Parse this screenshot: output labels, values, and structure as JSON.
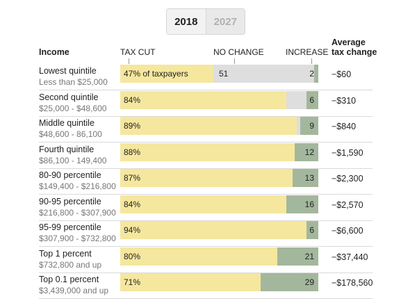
{
  "toggle": {
    "year_2018": "2018",
    "year_2027": "2027",
    "selected": "2018"
  },
  "headers": {
    "income": "Income",
    "tax_cut": "TAX CUT",
    "no_change": "NO CHANGE",
    "increase": "INCREASE",
    "avg_line1": "Average",
    "avg_line2": "tax change"
  },
  "colors": {
    "tax_cut": "#f5e79e",
    "no_change": "#dedede",
    "increase": "#a3b79d"
  },
  "chart_data": {
    "type": "bar",
    "stacked": true,
    "orientation": "horizontal",
    "unit": "percent of taxpayers",
    "segments": [
      "TAX CUT",
      "NO CHANGE",
      "INCREASE"
    ],
    "rows": [
      {
        "group": "Lowest quintile",
        "range": "Less than $25,000",
        "cut": 47,
        "cut_label": "47% of taxpayers",
        "nochange": 51,
        "nochange_label": "51",
        "increase": 2,
        "increase_label": "2",
        "avg": "−$60"
      },
      {
        "group": "Second quintile",
        "range": "$25,000 - $48,600",
        "cut": 84,
        "cut_label": "84%",
        "nochange": 10,
        "nochange_label": "",
        "increase": 6,
        "increase_label": "6",
        "avg": "−$310"
      },
      {
        "group": "Middle quintile",
        "range": "$48,600 - 86,100",
        "cut": 89,
        "cut_label": "89%",
        "nochange": 2,
        "nochange_label": "",
        "increase": 9,
        "increase_label": "9",
        "avg": "−$840"
      },
      {
        "group": "Fourth quintile",
        "range": "$86,100 - 149,400",
        "cut": 88,
        "cut_label": "88%",
        "nochange": 0,
        "nochange_label": "",
        "increase": 12,
        "increase_label": "12",
        "avg": "−$1,590"
      },
      {
        "group": "80-90 percentile",
        "range": "$149,400 - $216,800",
        "cut": 87,
        "cut_label": "87%",
        "nochange": 0,
        "nochange_label": "",
        "increase": 13,
        "increase_label": "13",
        "avg": "−$2,300"
      },
      {
        "group": "90-95 percentile",
        "range": "$216,800 - $307,900",
        "cut": 84,
        "cut_label": "84%",
        "nochange": 0,
        "nochange_label": "",
        "increase": 16,
        "increase_label": "16",
        "avg": "−$2,570"
      },
      {
        "group": "95-99 percentile",
        "range": "$307,900 - $732,800",
        "cut": 94,
        "cut_label": "94%",
        "nochange": 0,
        "nochange_label": "",
        "increase": 6,
        "increase_label": "6",
        "avg": "−$6,600"
      },
      {
        "group": "Top 1 percent",
        "range": "$732,800 and up",
        "cut": 80,
        "cut_label": "80%",
        "nochange": 0,
        "nochange_label": "",
        "increase": 21,
        "increase_label": "21",
        "avg": "−$37,440"
      },
      {
        "group": "Top 0.1 percent",
        "range": "$3,439,000 and up",
        "cut": 71,
        "cut_label": "71%",
        "nochange": 0,
        "nochange_label": "",
        "increase": 29,
        "increase_label": "29",
        "avg": "−$178,560"
      }
    ]
  }
}
